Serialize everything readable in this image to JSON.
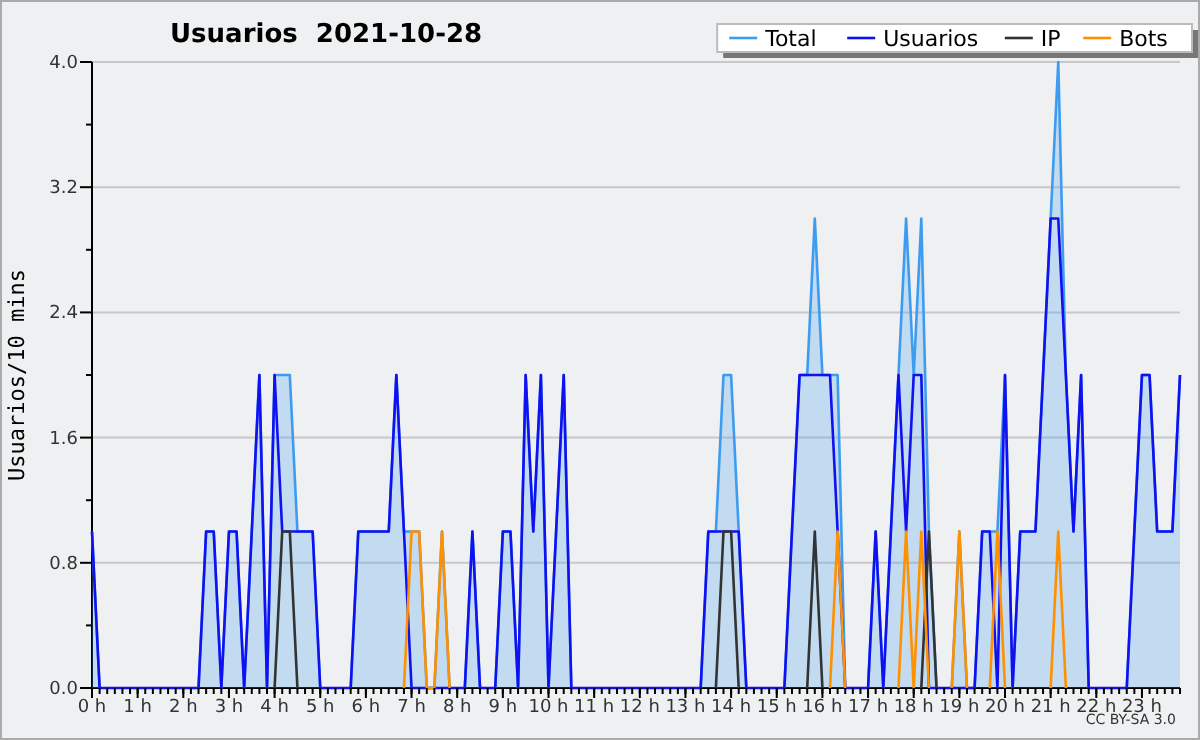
{
  "chart_data": {
    "type": "line",
    "title": "Usuarios  2021-10-28",
    "ylabel": "Usuarios/10 mins",
    "annotations": [
      "CC BY-SA 3.0"
    ],
    "x": [
      "2021-10-28T00:00",
      "2021-10-28T00:10",
      "2021-10-28T00:20",
      "2021-10-28T00:30",
      "2021-10-28T00:40",
      "2021-10-28T00:50",
      "2021-10-28T01:00",
      "2021-10-28T01:10",
      "2021-10-28T01:20",
      "2021-10-28T01:30",
      "2021-10-28T01:40",
      "2021-10-28T01:50",
      "2021-10-28T02:00",
      "2021-10-28T02:10",
      "2021-10-28T02:20",
      "2021-10-28T02:30",
      "2021-10-28T02:40",
      "2021-10-28T02:50",
      "2021-10-28T03:00",
      "2021-10-28T03:10",
      "2021-10-28T03:20",
      "2021-10-28T03:30",
      "2021-10-28T03:40",
      "2021-10-28T03:50",
      "2021-10-28T04:00",
      "2021-10-28T04:10",
      "2021-10-28T04:20",
      "2021-10-28T04:30",
      "2021-10-28T04:40",
      "2021-10-28T04:50",
      "2021-10-28T05:00",
      "2021-10-28T05:10",
      "2021-10-28T05:20",
      "2021-10-28T05:30",
      "2021-10-28T05:40",
      "2021-10-28T05:50",
      "2021-10-28T06:00",
      "2021-10-28T06:10",
      "2021-10-28T06:20",
      "2021-10-28T06:30",
      "2021-10-28T06:40",
      "2021-10-28T06:50",
      "2021-10-28T07:00",
      "2021-10-28T07:10",
      "2021-10-28T07:20",
      "2021-10-28T07:30",
      "2021-10-28T07:40",
      "2021-10-28T07:50",
      "2021-10-28T08:00",
      "2021-10-28T08:10",
      "2021-10-28T08:20",
      "2021-10-28T08:30",
      "2021-10-28T08:40",
      "2021-10-28T08:50",
      "2021-10-28T09:00",
      "2021-10-28T09:10",
      "2021-10-28T09:20",
      "2021-10-28T09:30",
      "2021-10-28T09:40",
      "2021-10-28T09:50",
      "2021-10-28T10:00",
      "2021-10-28T10:10",
      "2021-10-28T10:20",
      "2021-10-28T10:30",
      "2021-10-28T10:40",
      "2021-10-28T10:50",
      "2021-10-28T11:00",
      "2021-10-28T11:10",
      "2021-10-28T11:20",
      "2021-10-28T11:30",
      "2021-10-28T11:40",
      "2021-10-28T11:50",
      "2021-10-28T12:00",
      "2021-10-28T12:10",
      "2021-10-28T12:20",
      "2021-10-28T12:30",
      "2021-10-28T12:40",
      "2021-10-28T12:50",
      "2021-10-28T13:00",
      "2021-10-28T13:10",
      "2021-10-28T13:20",
      "2021-10-28T13:30",
      "2021-10-28T13:40",
      "2021-10-28T13:50",
      "2021-10-28T14:00",
      "2021-10-28T14:10",
      "2021-10-28T14:20",
      "2021-10-28T14:30",
      "2021-10-28T14:40",
      "2021-10-28T14:50",
      "2021-10-28T15:00",
      "2021-10-28T15:10",
      "2021-10-28T15:20",
      "2021-10-28T15:30",
      "2021-10-28T15:40",
      "2021-10-28T15:50",
      "2021-10-28T16:00",
      "2021-10-28T16:10",
      "2021-10-28T16:20",
      "2021-10-28T16:30",
      "2021-10-28T16:40",
      "2021-10-28T16:50",
      "2021-10-28T17:00",
      "2021-10-28T17:10",
      "2021-10-28T17:20",
      "2021-10-28T17:30",
      "2021-10-28T17:40",
      "2021-10-28T17:50",
      "2021-10-28T18:00",
      "2021-10-28T18:10",
      "2021-10-28T18:20",
      "2021-10-28T18:30",
      "2021-10-28T18:40",
      "2021-10-28T18:50",
      "2021-10-28T19:00",
      "2021-10-28T19:10",
      "2021-10-28T19:20",
      "2021-10-28T19:30",
      "2021-10-28T19:40",
      "2021-10-28T19:50",
      "2021-10-28T20:00",
      "2021-10-28T20:10",
      "2021-10-28T20:20",
      "2021-10-28T20:30",
      "2021-10-28T20:40",
      "2021-10-28T20:50",
      "2021-10-28T21:00",
      "2021-10-28T21:10",
      "2021-10-28T21:20",
      "2021-10-28T21:30",
      "2021-10-28T21:40",
      "2021-10-28T21:50",
      "2021-10-28T22:00",
      "2021-10-28T22:10",
      "2021-10-28T22:20",
      "2021-10-28T22:30",
      "2021-10-28T22:40",
      "2021-10-28T22:50",
      "2021-10-28T23:00",
      "2021-10-28T23:10",
      "2021-10-28T23:20",
      "2021-10-28T23:30",
      "2021-10-28T23:40",
      "2021-10-28T23:50"
    ],
    "series": [
      {
        "name": "Total",
        "type": "area",
        "color": "#3d9cf0",
        "values": [
          1,
          0,
          null,
          null,
          null,
          null,
          null,
          null,
          null,
          null,
          null,
          null,
          null,
          null,
          0,
          1,
          1,
          0,
          1,
          1,
          0,
          1,
          2,
          0,
          2,
          2,
          2,
          1,
          1,
          1,
          0,
          null,
          null,
          null,
          0,
          1,
          1,
          1,
          1,
          1,
          2,
          1,
          1,
          1,
          0,
          0,
          1,
          0,
          null,
          0,
          1,
          0,
          null,
          0,
          1,
          1,
          0,
          2,
          1,
          2,
          0,
          1,
          2,
          0,
          null,
          null,
          null,
          null,
          null,
          null,
          null,
          null,
          null,
          null,
          null,
          null,
          null,
          null,
          null,
          null,
          0,
          1,
          1,
          2,
          2,
          1,
          0,
          null,
          null,
          null,
          null,
          0,
          1,
          2,
          2,
          3,
          2,
          2,
          2,
          0,
          null,
          null,
          0,
          1,
          0,
          1,
          2,
          3,
          2,
          3,
          1,
          0,
          null,
          0,
          1,
          0,
          0,
          1,
          1,
          1,
          2,
          0,
          1,
          1,
          1,
          2,
          3,
          4,
          2,
          1,
          2,
          0,
          null,
          null,
          null,
          null,
          0,
          1,
          2,
          2,
          1,
          1,
          1,
          2
        ]
      },
      {
        "name": "Usuarios",
        "color": "#1010f0",
        "values": [
          1,
          0,
          0,
          0,
          0,
          0,
          0,
          0,
          0,
          0,
          0,
          0,
          0,
          0,
          0,
          1,
          1,
          0,
          1,
          1,
          0,
          1,
          2,
          0,
          2,
          1,
          1,
          1,
          1,
          1,
          0,
          0,
          0,
          0,
          0,
          1,
          1,
          1,
          1,
          1,
          2,
          1,
          0,
          0,
          0,
          0,
          0,
          0,
          0,
          0,
          1,
          0,
          0,
          0,
          1,
          1,
          0,
          2,
          1,
          2,
          0,
          1,
          2,
          0,
          0,
          0,
          0,
          0,
          0,
          0,
          0,
          0,
          0,
          0,
          0,
          0,
          0,
          0,
          0,
          0,
          0,
          1,
          1,
          1,
          1,
          1,
          0,
          0,
          0,
          0,
          0,
          0,
          1,
          2,
          2,
          2,
          2,
          2,
          1,
          0,
          0,
          0,
          0,
          1,
          0,
          1,
          2,
          1,
          2,
          2,
          0,
          0,
          0,
          0,
          0,
          0,
          0,
          1,
          1,
          0,
          2,
          0,
          1,
          1,
          1,
          2,
          3,
          3,
          2,
          1,
          2,
          0,
          0,
          0,
          0,
          0,
          0,
          1,
          2,
          2,
          1,
          1,
          1,
          2
        ]
      },
      {
        "name": "IP",
        "color": "#333333",
        "values": [
          null,
          null,
          null,
          null,
          null,
          null,
          null,
          null,
          null,
          null,
          null,
          null,
          null,
          null,
          null,
          null,
          null,
          null,
          null,
          null,
          null,
          null,
          null,
          null,
          0,
          1,
          1,
          0,
          null,
          null,
          null,
          null,
          null,
          null,
          null,
          null,
          null,
          null,
          null,
          null,
          null,
          null,
          null,
          null,
          null,
          null,
          null,
          null,
          null,
          null,
          null,
          null,
          null,
          null,
          null,
          null,
          null,
          null,
          null,
          null,
          null,
          null,
          null,
          null,
          null,
          null,
          null,
          null,
          null,
          null,
          null,
          null,
          null,
          null,
          null,
          null,
          null,
          null,
          null,
          null,
          null,
          null,
          0,
          1,
          1,
          0,
          null,
          null,
          null,
          null,
          null,
          null,
          null,
          null,
          0,
          1,
          0,
          null,
          null,
          null,
          null,
          null,
          null,
          null,
          null,
          null,
          null,
          null,
          null,
          0,
          1,
          0,
          null,
          null,
          null,
          null,
          null,
          null,
          null,
          null,
          null,
          null,
          null,
          null,
          null,
          null,
          null,
          null,
          null,
          null,
          null,
          null,
          null,
          null,
          null,
          null,
          null,
          null,
          null,
          null,
          null,
          null,
          null,
          null
        ]
      },
      {
        "name": "Bots",
        "color": "#ff9000",
        "values": [
          null,
          null,
          null,
          null,
          null,
          null,
          null,
          null,
          null,
          null,
          null,
          null,
          null,
          null,
          null,
          null,
          null,
          null,
          null,
          null,
          null,
          null,
          null,
          null,
          null,
          null,
          null,
          null,
          null,
          null,
          null,
          null,
          null,
          null,
          null,
          null,
          null,
          null,
          null,
          null,
          null,
          0,
          1,
          1,
          0,
          0,
          1,
          0,
          null,
          null,
          null,
          null,
          null,
          null,
          null,
          null,
          null,
          null,
          null,
          null,
          null,
          null,
          null,
          null,
          null,
          null,
          null,
          null,
          null,
          null,
          null,
          null,
          null,
          null,
          null,
          null,
          null,
          null,
          null,
          null,
          null,
          null,
          null,
          null,
          null,
          null,
          null,
          null,
          null,
          null,
          null,
          null,
          null,
          null,
          null,
          null,
          null,
          0,
          1,
          0,
          null,
          null,
          null,
          null,
          null,
          null,
          0,
          1,
          0,
          1,
          0,
          null,
          null,
          0,
          1,
          0,
          null,
          null,
          0,
          1,
          0,
          null,
          null,
          null,
          null,
          null,
          0,
          1,
          0,
          null,
          null,
          null,
          null,
          null,
          null,
          null,
          null,
          null,
          null,
          null,
          null,
          null,
          null,
          null
        ]
      }
    ],
    "xlim": [
      "2021-10-28T00:00",
      "2021-10-28T23:50"
    ],
    "xticks": [
      {
        "value": "2021-10-28T00:00",
        "label": "0 h"
      },
      {
        "value": "2021-10-28T01:00",
        "label": "1 h"
      },
      {
        "value": "2021-10-28T02:00",
        "label": "2 h"
      },
      {
        "value": "2021-10-28T03:00",
        "label": "3 h"
      },
      {
        "value": "2021-10-28T04:00",
        "label": "4 h"
      },
      {
        "value": "2021-10-28T05:00",
        "label": "5 h"
      },
      {
        "value": "2021-10-28T06:00",
        "label": "6 h"
      },
      {
        "value": "2021-10-28T07:00",
        "label": "7 h"
      },
      {
        "value": "2021-10-28T08:00",
        "label": "8 h"
      },
      {
        "value": "2021-10-28T09:00",
        "label": "9 h"
      },
      {
        "value": "2021-10-28T10:00",
        "label": "10 h"
      },
      {
        "value": "2021-10-28T11:00",
        "label": "11 h"
      },
      {
        "value": "2021-10-28T12:00",
        "label": "12 h"
      },
      {
        "value": "2021-10-28T13:00",
        "label": "13 h"
      },
      {
        "value": "2021-10-28T14:00",
        "label": "14 h"
      },
      {
        "value": "2021-10-28T15:00",
        "label": "15 h"
      },
      {
        "value": "2021-10-28T16:00",
        "label": "16 h"
      },
      {
        "value": "2021-10-28T17:00",
        "label": "17 h"
      },
      {
        "value": "2021-10-28T18:00",
        "label": "18 h"
      },
      {
        "value": "2021-10-28T19:00",
        "label": "19 h"
      },
      {
        "value": "2021-10-28T20:00",
        "label": "20 h"
      },
      {
        "value": "2021-10-28T21:00",
        "label": "21 h"
      },
      {
        "value": "2021-10-28T22:00",
        "label": "22 h"
      },
      {
        "value": "2021-10-28T23:00",
        "label": "23 h"
      }
    ],
    "ylim": [
      0,
      4
    ],
    "yticks": [
      {
        "value": 0,
        "label": "0.0"
      },
      {
        "value": 0.4,
        "label": null
      },
      0.8,
      {
        "value": 1.2,
        "label": null
      },
      1.6,
      {
        "value": 2.0,
        "label": null
      },
      2.4,
      {
        "value": 2.8,
        "label": null
      },
      3.2,
      {
        "value": 3.6,
        "label": null
      },
      {
        "value": 4,
        "label": "4.0"
      }
    ],
    "grid": "y",
    "legend": "top right",
    "marker": "none",
    "line_style": "solid"
  }
}
